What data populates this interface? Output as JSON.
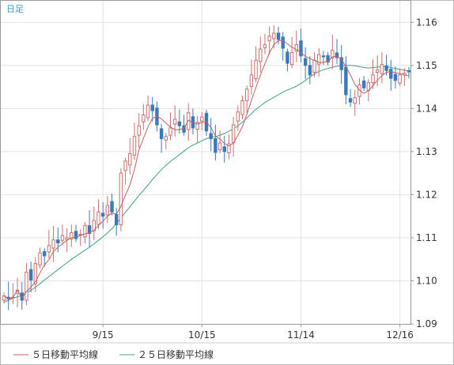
{
  "chart_data": {
    "type": "candlestick",
    "period_label": "日足",
    "ylim": [
      1.09,
      1.165
    ],
    "y_ticks": [
      {
        "value": 1.09,
        "label": "1.09"
      },
      {
        "value": 1.1,
        "label": "1.10"
      },
      {
        "value": 1.11,
        "label": "1.11"
      },
      {
        "value": 1.12,
        "label": "1.12"
      },
      {
        "value": 1.13,
        "label": "1.13"
      },
      {
        "value": 1.14,
        "label": "1.14"
      },
      {
        "value": 1.15,
        "label": "1.15"
      },
      {
        "value": 1.16,
        "label": "1.16"
      }
    ],
    "x_ticks": [
      {
        "index": 22,
        "label": "9/15"
      },
      {
        "index": 44,
        "label": "10/15"
      },
      {
        "index": 66,
        "label": "11/14"
      },
      {
        "index": 88,
        "label": "12/16"
      }
    ],
    "grid": true,
    "legend_position": "bottom",
    "legend": [
      {
        "label": "５日移動平均線",
        "color": "#c06060"
      },
      {
        "label": "２５日移動平均線",
        "color": "#40a080"
      }
    ],
    "up_color": "#c87070",
    "down_color": "#3a7ab8",
    "closes": [
      1.0965,
      1.0958,
      1.0962,
      1.0978,
      1.0955,
      1.102,
      1.1002,
      1.104,
      1.1065,
      1.1058,
      1.1082,
      1.1095,
      1.1088,
      1.1105,
      1.11,
      1.1112,
      1.1098,
      1.1108,
      1.1128,
      1.111,
      1.114,
      1.116,
      1.115,
      1.1175,
      1.116,
      1.113,
      1.125,
      1.1278,
      1.1295,
      1.1335,
      1.136,
      1.1385,
      1.1408,
      1.1395,
      1.1362,
      1.133,
      1.1335,
      1.1355,
      1.1375,
      1.136,
      1.1345,
      1.139,
      1.1355,
      1.1368,
      1.138,
      1.1348,
      1.133,
      1.1298,
      1.132,
      1.13,
      1.1318,
      1.1362,
      1.1392,
      1.1418,
      1.1445,
      1.1478,
      1.1512,
      1.1538,
      1.1548,
      1.1568,
      1.1575,
      1.156,
      1.154,
      1.1505,
      1.153,
      1.1548,
      1.1522,
      1.15,
      1.1478,
      1.1512,
      1.1525,
      1.152,
      1.1508,
      1.1535,
      1.1518,
      1.149,
      1.1432,
      1.1415,
      1.1425,
      1.1455,
      1.1448,
      1.146,
      1.1478,
      1.149,
      1.1502,
      1.1488,
      1.147,
      1.1465,
      1.1478,
      1.1482,
      1.1485
    ],
    "ma5": [
      1.0965,
      1.0958,
      1.0962,
      1.0978,
      1.096,
      1.0975,
      1.0985,
      1.0998,
      1.1018,
      1.1037,
      1.1049,
      1.1068,
      1.1078,
      1.1086,
      1.1094,
      1.11,
      1.1101,
      1.1105,
      1.1109,
      1.1112,
      1.1117,
      1.1129,
      1.1138,
      1.115,
      1.1157,
      1.1155,
      1.1173,
      1.1199,
      1.1223,
      1.1258,
      1.1304,
      1.1331,
      1.1357,
      1.1377,
      1.1382,
      1.1376,
      1.1366,
      1.1357,
      1.1351,
      1.1351,
      1.1354,
      1.1373,
      1.1367,
      1.1364,
      1.1368,
      1.1368,
      1.1356,
      1.1336,
      1.1329,
      1.1319,
      1.1313,
      1.132,
      1.1338,
      1.1358,
      1.1387,
      1.1419,
      1.1449,
      1.1478,
      1.1504,
      1.1529,
      1.1548,
      1.1558,
      1.1558,
      1.155,
      1.1542,
      1.1537,
      1.1529,
      1.1521,
      1.1516,
      1.1512,
      1.1507,
      1.1507,
      1.1509,
      1.152,
      1.1521,
      1.1514,
      1.1497,
      1.1478,
      1.1456,
      1.1443,
      1.1435,
      1.1441,
      1.1453,
      1.1466,
      1.1476,
      1.1484,
      1.1486,
      1.1483,
      1.1481,
      1.1478,
      1.1476
    ],
    "ma25": [
      1.095,
      1.0955,
      1.096,
      1.0963,
      1.0966,
      1.0972,
      1.0978,
      1.0985,
      1.0993,
      1.1002,
      1.101,
      1.1018,
      1.1026,
      1.1034,
      1.1042,
      1.105,
      1.1057,
      1.1064,
      1.1071,
      1.1078,
      1.1086,
      1.1094,
      1.1102,
      1.1111,
      1.1121,
      1.1133,
      1.1146,
      1.1159,
      1.1172,
      1.1185,
      1.1198,
      1.121,
      1.1222,
      1.1235,
      1.1247,
      1.1258,
      1.1268,
      1.1277,
      1.1285,
      1.1293,
      1.1301,
      1.1309,
      1.1315,
      1.132,
      1.1325,
      1.133,
      1.1333,
      1.1335,
      1.1338,
      1.1342,
      1.1347,
      1.1353,
      1.136,
      1.1368,
      1.1378,
      1.1388,
      1.1398,
      1.1406,
      1.1414,
      1.142,
      1.1426,
      1.1432,
      1.1438,
      1.1443,
      1.1447,
      1.1452,
      1.1458,
      1.1465,
      1.1473,
      1.148,
      1.1486,
      1.149,
      1.1493,
      1.1496,
      1.1498,
      1.1499,
      1.15,
      1.15,
      1.1499,
      1.1497,
      1.1495,
      1.1494,
      1.1495,
      1.1496,
      1.1497,
      1.1497,
      1.1495,
      1.1493,
      1.1491,
      1.1489,
      1.1487
    ]
  }
}
